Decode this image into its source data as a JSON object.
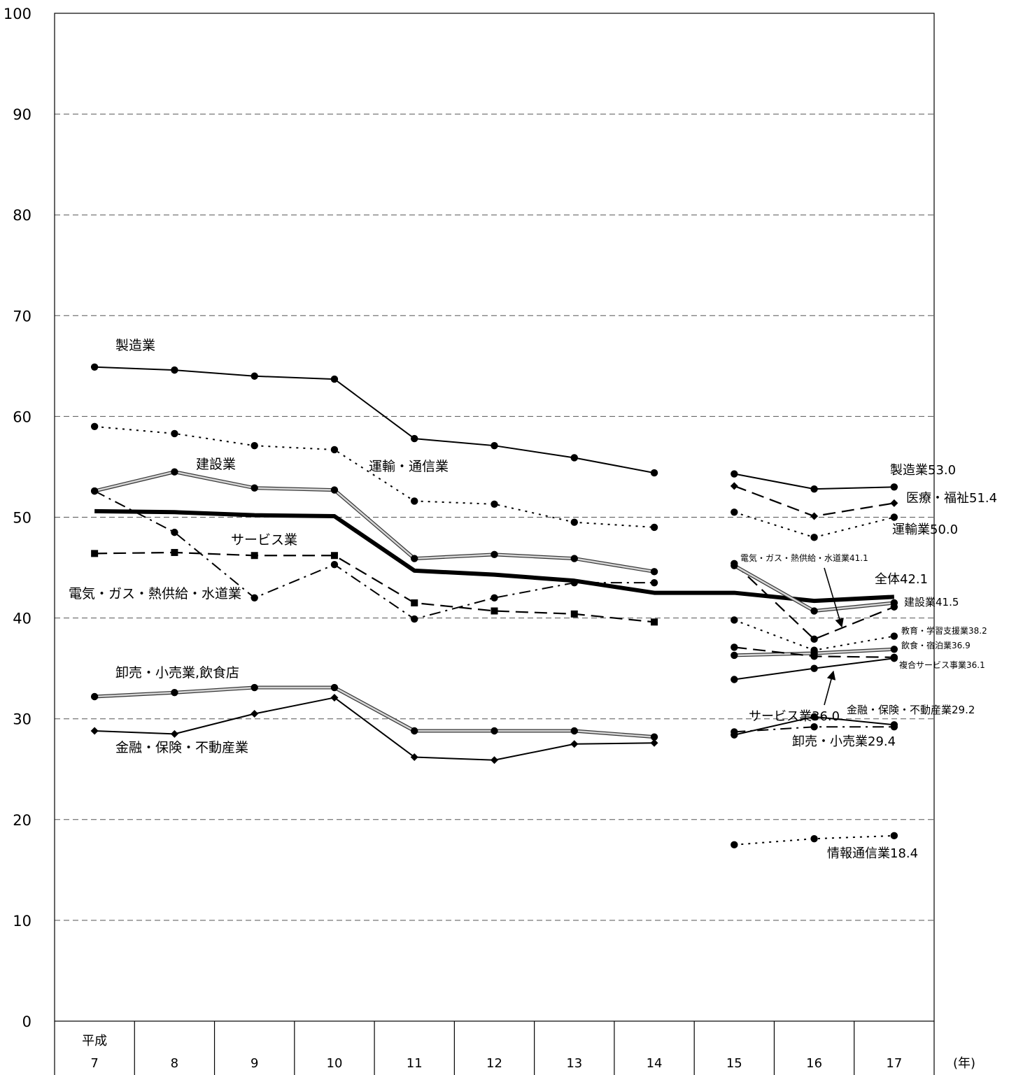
{
  "chart_data": {
    "type": "line",
    "ylim": [
      0,
      100
    ],
    "yticks": [
      0,
      10,
      20,
      30,
      40,
      50,
      60,
      70,
      80,
      90,
      100
    ],
    "x_categories": [
      "7",
      "8",
      "9",
      "10",
      "11",
      "12",
      "13",
      "14",
      "15",
      "16",
      "17"
    ],
    "x_era_label": "平成",
    "x_unit_label": "(年)",
    "grid": "horizontal-dashed",
    "series": [
      {
        "name": "製造業",
        "style": "solid",
        "marker": "circle",
        "x": [
          0,
          1,
          2,
          3,
          4,
          5,
          6,
          7
        ],
        "values": [
          64.9,
          64.6,
          64.0,
          63.7,
          57.8,
          57.1,
          55.9,
          54.4
        ]
      },
      {
        "name": "運輸・通信業",
        "style": "dotted",
        "marker": "circle",
        "x": [
          0,
          1,
          2,
          3,
          4,
          5,
          6,
          7
        ],
        "values": [
          59.0,
          58.3,
          57.1,
          56.7,
          51.6,
          51.3,
          49.5,
          49.0
        ]
      },
      {
        "name": "建設業",
        "style": "gray",
        "marker": "circle",
        "x": [
          0,
          1,
          2,
          3,
          4,
          5,
          6,
          7
        ],
        "values": [
          52.6,
          54.5,
          52.9,
          52.7,
          45.9,
          46.3,
          45.9,
          44.6
        ]
      },
      {
        "name": "サービス業",
        "style": "dashed",
        "marker": "square",
        "x": [
          0,
          1,
          2,
          3,
          4,
          5,
          6,
          7
        ],
        "values": [
          46.4,
          46.5,
          46.2,
          46.2,
          41.5,
          40.7,
          40.4,
          39.6
        ]
      },
      {
        "name": "電気・ガス・熱供給・水道業",
        "style": "dashdot",
        "marker": "circle",
        "x": [
          0,
          1,
          2,
          3,
          4,
          5,
          6,
          7
        ],
        "values": [
          52.6,
          48.5,
          42.0,
          45.3,
          39.9,
          42.0,
          43.5,
          43.5
        ]
      },
      {
        "name": "全体",
        "style": "thick",
        "marker": "none",
        "x": [
          0,
          1,
          2,
          3,
          4,
          5,
          6,
          7,
          8,
          9,
          10
        ],
        "values": [
          50.6,
          50.5,
          50.2,
          50.1,
          44.7,
          44.3,
          43.7,
          42.5,
          42.5,
          41.7,
          42.1
        ]
      },
      {
        "name": "卸売・小売業,飲食店",
        "style": "gray",
        "marker": "circle",
        "x": [
          0,
          1,
          2,
          3,
          4,
          5,
          6,
          7
        ],
        "values": [
          32.2,
          32.6,
          33.1,
          33.1,
          28.8,
          28.8,
          28.8,
          28.2
        ]
      },
      {
        "name": "金融・保険・不動産業",
        "style": "solid",
        "marker": "diamond",
        "x": [
          0,
          1,
          2,
          3,
          4,
          5,
          6,
          7
        ],
        "values": [
          28.8,
          28.5,
          30.5,
          32.1,
          26.2,
          25.9,
          27.5,
          27.6
        ]
      },
      {
        "name": "製造業",
        "style": "solid",
        "marker": "circle",
        "x": [
          8,
          9,
          10
        ],
        "values": [
          54.3,
          52.8,
          53.0
        ]
      },
      {
        "name": "医療・福祉",
        "style": "dashed",
        "marker": "diamond",
        "x": [
          8,
          9,
          10
        ],
        "values": [
          53.1,
          50.1,
          51.4
        ]
      },
      {
        "name": "運輸業",
        "style": "dotted",
        "marker": "circle",
        "x": [
          8,
          9,
          10
        ],
        "values": [
          50.5,
          48.0,
          50.0
        ]
      },
      {
        "name": "電気・ガス・熱供給・水道業",
        "style": "dashed",
        "marker": "circle",
        "x": [
          8,
          9,
          10
        ],
        "values": [
          45.4,
          37.9,
          41.1
        ]
      },
      {
        "name": "建設業",
        "style": "gray",
        "marker": "circle",
        "x": [
          8,
          9,
          10
        ],
        "values": [
          45.2,
          40.7,
          41.5
        ]
      },
      {
        "name": "教育・学習支援業",
        "style": "dotted",
        "marker": "circle",
        "x": [
          8,
          9,
          10
        ],
        "values": [
          39.8,
          36.8,
          38.2
        ]
      },
      {
        "name": "飲食・宿泊業",
        "style": "gray",
        "marker": "circle",
        "x": [
          8,
          9,
          10
        ],
        "values": [
          36.3,
          36.5,
          36.9
        ]
      },
      {
        "name": "複合サービス事業",
        "style": "dashed",
        "marker": "circle",
        "x": [
          8,
          9,
          10
        ],
        "values": [
          37.1,
          36.2,
          36.1
        ]
      },
      {
        "name": "サービス業",
        "style": "solid",
        "marker": "circle",
        "x": [
          8,
          9,
          10
        ],
        "values": [
          33.9,
          35.0,
          36.0
        ]
      },
      {
        "name": "卸売・小売業",
        "style": "solid",
        "marker": "circle",
        "x": [
          8,
          9,
          10
        ],
        "values": [
          28.4,
          30.2,
          29.4
        ]
      },
      {
        "name": "金融・保険・不動産業",
        "style": "dashdot",
        "marker": "circle",
        "x": [
          8,
          9,
          10
        ],
        "values": [
          28.7,
          29.2,
          29.2
        ]
      },
      {
        "name": "情報通信業",
        "style": "dotted",
        "marker": "circle",
        "x": [
          8,
          9,
          10
        ],
        "values": [
          17.5,
          18.1,
          18.4
        ]
      }
    ],
    "annotations": [
      {
        "text": "製造業"
      },
      {
        "text": "建設業"
      },
      {
        "text": "運輸・通信業"
      },
      {
        "text": "サービス業"
      },
      {
        "text": "電気・ガス・熱供給・水道業"
      },
      {
        "text": "卸売・小売業,飲食店"
      },
      {
        "text": "金融・保険・不動産業"
      },
      {
        "text": "製造業53.0"
      },
      {
        "text": "医療・福祉51.4"
      },
      {
        "text": "運輸業50.0"
      },
      {
        "text": "電気・ガス・熱供給・水道業41.1"
      },
      {
        "text": "全体42.1"
      },
      {
        "text": "建設業41.5"
      },
      {
        "text": "教育・学習支援業38.2"
      },
      {
        "text": "飲食・宿泊業36.9"
      },
      {
        "text": "複合サービス事業36.1"
      },
      {
        "text": "サービス業36.0"
      },
      {
        "text": "金融・保険・不動産業29.2"
      },
      {
        "text": "卸売・小売業29.4"
      },
      {
        "text": "情報通信業18.4"
      }
    ]
  }
}
